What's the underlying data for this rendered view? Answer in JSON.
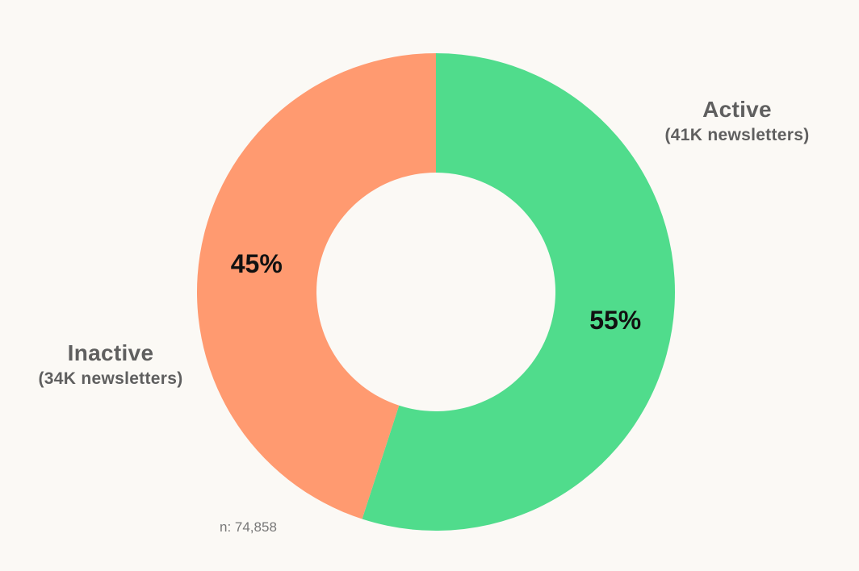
{
  "chart_data": {
    "type": "pie",
    "variant": "donut",
    "slices": [
      {
        "label": "Active",
        "sublabel": "(41K newsletters)",
        "value": 55,
        "value_label": "55%",
        "color": "#50dc8c"
      },
      {
        "label": "Inactive",
        "sublabel": "(34K newsletters)",
        "value": 45,
        "value_label": "45%",
        "color": "#ff9a70"
      }
    ],
    "annotation": "n: 74,858",
    "start_angle_deg": 0,
    "direction": "clockwise"
  },
  "colors": {
    "background": "#fbf9f5",
    "label_text": "#5f5f5f",
    "value_text": "#111111",
    "note_text": "#777777"
  }
}
